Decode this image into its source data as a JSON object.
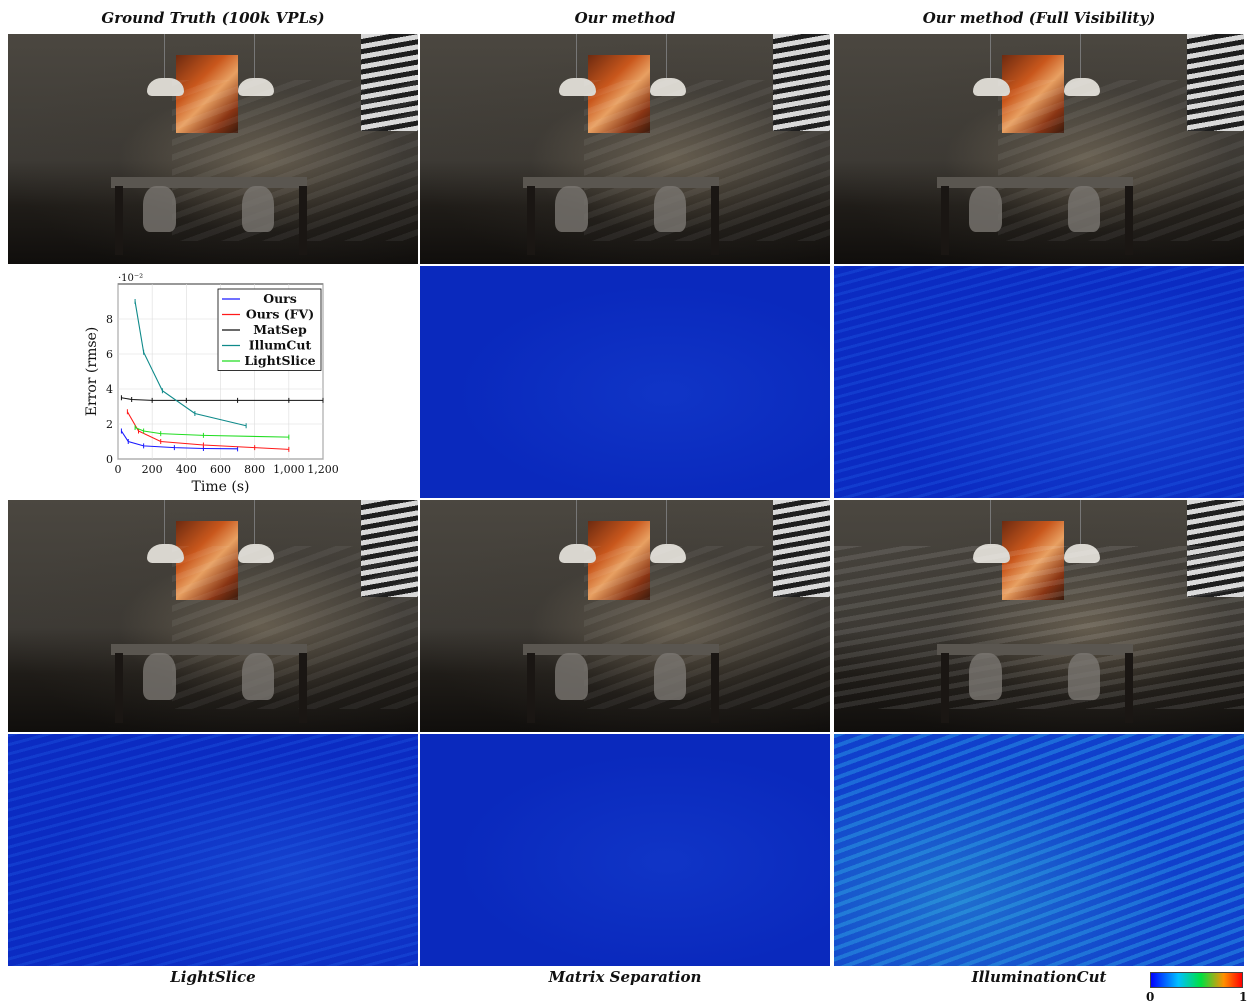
{
  "headers": {
    "col1": "Ground Truth (100k VPLs)",
    "col2": "Our method",
    "col3": "Our method (Full Visibility)"
  },
  "footers": {
    "col1": "LightSlice",
    "col2": "Matrix Separation",
    "col3": "IlluminationCut"
  },
  "colorbar": {
    "min_label": "0",
    "max_label": "1"
  },
  "chart_data": {
    "type": "line",
    "xlabel": "Time (s)",
    "ylabel": "Error (rmse)",
    "y_exponent_label": "·10⁻²",
    "xlim": [
      0,
      1200
    ],
    "ylim": [
      0,
      10
    ],
    "x_ticks": [
      "0",
      "200",
      "400",
      "600",
      "800",
      "1,000",
      "1,200"
    ],
    "x_tick_values": [
      0,
      200,
      400,
      600,
      800,
      1000,
      1200
    ],
    "y_ticks": [
      "0",
      "2",
      "4",
      "6",
      "8"
    ],
    "y_tick_values": [
      0,
      2,
      4,
      6,
      8
    ],
    "legend_position": "top-right",
    "series": [
      {
        "name": "Ours",
        "color": "#1a1aff",
        "points": [
          [
            20,
            1.6
          ],
          [
            60,
            1.0
          ],
          [
            150,
            0.75
          ],
          [
            330,
            0.65
          ],
          [
            500,
            0.6
          ],
          [
            700,
            0.58
          ]
        ]
      },
      {
        "name": "Ours (FV)",
        "color": "#ff1a1a",
        "points": [
          [
            55,
            2.7
          ],
          [
            120,
            1.6
          ],
          [
            250,
            1.0
          ],
          [
            500,
            0.8
          ],
          [
            800,
            0.65
          ],
          [
            1000,
            0.55
          ]
        ]
      },
      {
        "name": "MatSep",
        "color": "#111111",
        "points": [
          [
            20,
            3.5
          ],
          [
            80,
            3.4
          ],
          [
            200,
            3.35
          ],
          [
            400,
            3.35
          ],
          [
            700,
            3.35
          ],
          [
            1000,
            3.35
          ],
          [
            1200,
            3.35
          ]
        ]
      },
      {
        "name": "IllumCut",
        "color": "#0f8a8a",
        "points": [
          [
            100,
            9.0
          ],
          [
            150,
            6.1
          ],
          [
            260,
            3.9
          ],
          [
            450,
            2.6
          ],
          [
            750,
            1.9
          ]
        ]
      },
      {
        "name": "LightSlice",
        "color": "#22dd22",
        "points": [
          [
            100,
            1.8
          ],
          [
            150,
            1.6
          ],
          [
            250,
            1.45
          ],
          [
            500,
            1.35
          ],
          [
            1000,
            1.25
          ]
        ]
      }
    ]
  }
}
